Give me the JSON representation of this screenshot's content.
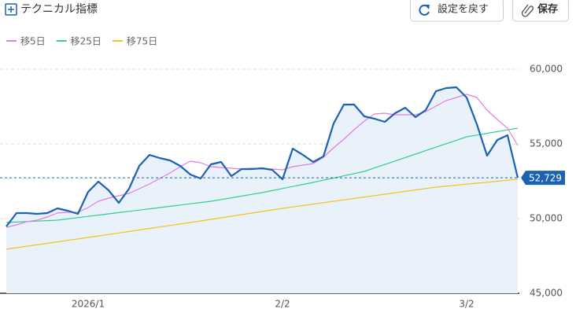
{
  "toolbar": {
    "title": "テクニカル指標",
    "buttons": [
      "設定を戻す",
      "保存"
    ]
  },
  "chart_data": {
    "type": "line",
    "categories": [
      null,
      null,
      null,
      null,
      null,
      null,
      null,
      null,
      "2026/1",
      null,
      null,
      null,
      null,
      null,
      null,
      null,
      null,
      null,
      null,
      null,
      null,
      null,
      null,
      null,
      null,
      null,
      null,
      "2/2",
      null,
      null,
      null,
      null,
      null,
      null,
      null,
      null,
      null,
      null,
      null,
      null,
      null,
      null,
      null,
      null,
      null,
      "3/2",
      null,
      null,
      null,
      null,
      null
    ],
    "series": [
      {
        "color": "#1c62b3",
        "values": [
          49474,
          50368,
          50368,
          50316,
          50368,
          50684,
          50526,
          50316,
          51789,
          52474,
          51895,
          51053,
          52000,
          53526,
          54263,
          54053,
          53895,
          53526,
          52947,
          52684,
          53632,
          53789,
          52842,
          53316,
          53316,
          53368,
          53263,
          52632,
          54684,
          54263,
          53789,
          54158,
          56368,
          57632,
          57632,
          56842,
          56684,
          56474,
          57053,
          57421,
          56789,
          57263,
          58526,
          58737,
          58789,
          58105,
          56316,
          54211,
          55263,
          55579,
          52729
        ],
        "value_labels": [
          null,
          null,
          null,
          null,
          null,
          null,
          null,
          null,
          null,
          null,
          null,
          null,
          null,
          null,
          null,
          null,
          null,
          null,
          null,
          null,
          null,
          null,
          null,
          null,
          null,
          null,
          null,
          null,
          null,
          null,
          null,
          null,
          null,
          null,
          null,
          null,
          null,
          null,
          null,
          null,
          null,
          null,
          null,
          null,
          null,
          null,
          null,
          null,
          null,
          null,
          "52,729"
        ]
      },
      {
        "name": "移5日",
        "color": "#e57be5",
        "values": [
          49421,
          49579,
          49789,
          49895,
          50105,
          50368,
          50421,
          50421,
          50737,
          51158,
          51368,
          51526,
          51684,
          52000,
          52316,
          52684,
          53053,
          53474,
          53842,
          53737,
          53474,
          53421,
          53368,
          53316,
          53368,
          53316,
          53316,
          53263,
          53474,
          53579,
          53684,
          54105,
          54737,
          55316,
          55947,
          56526,
          57000,
          57053,
          56947,
          56947,
          56947,
          57158,
          57526,
          57895,
          58105,
          58316,
          58105,
          57263,
          56632,
          56053,
          54895
        ]
      },
      {
        "name": "移25日",
        "color": "#2fd08c",
        "values": [
          49737,
          49769,
          49800,
          49832,
          49863,
          49895,
          49979,
          50063,
          50147,
          50232,
          50316,
          50400,
          50484,
          50568,
          50653,
          50737,
          50821,
          50905,
          50989,
          51074,
          51158,
          51274,
          51390,
          51505,
          51621,
          51737,
          51874,
          52011,
          52147,
          52284,
          52421,
          52568,
          52716,
          52863,
          53011,
          53158,
          53390,
          53621,
          53853,
          54084,
          54316,
          54548,
          54779,
          55011,
          55242,
          55474,
          55590,
          55705,
          55821,
          55937,
          56053
        ]
      },
      {
        "name": "移75日",
        "color": "#f0c419",
        "values": [
          47947,
          48046,
          48145,
          48244,
          48342,
          48441,
          48540,
          48639,
          48737,
          48837,
          48937,
          49037,
          49137,
          49237,
          49337,
          49437,
          49537,
          49637,
          49737,
          49842,
          49947,
          50053,
          50158,
          50263,
          50368,
          50474,
          50579,
          50684,
          50779,
          50874,
          50968,
          51063,
          51158,
          51253,
          51347,
          51442,
          51537,
          51632,
          51726,
          51821,
          51916,
          52011,
          52105,
          52171,
          52237,
          52303,
          52369,
          52434,
          52500,
          52566,
          52632
        ]
      }
    ],
    "ylim": [
      45000,
      61000
    ],
    "yticks": [
      {
        "value": 45000,
        "label": "45,000"
      },
      {
        "value": 50000,
        "label": "50,000"
      },
      {
        "value": 55000,
        "label": "55,000"
      },
      {
        "value": 60000,
        "label": "60,000"
      }
    ],
    "grid": true
  }
}
